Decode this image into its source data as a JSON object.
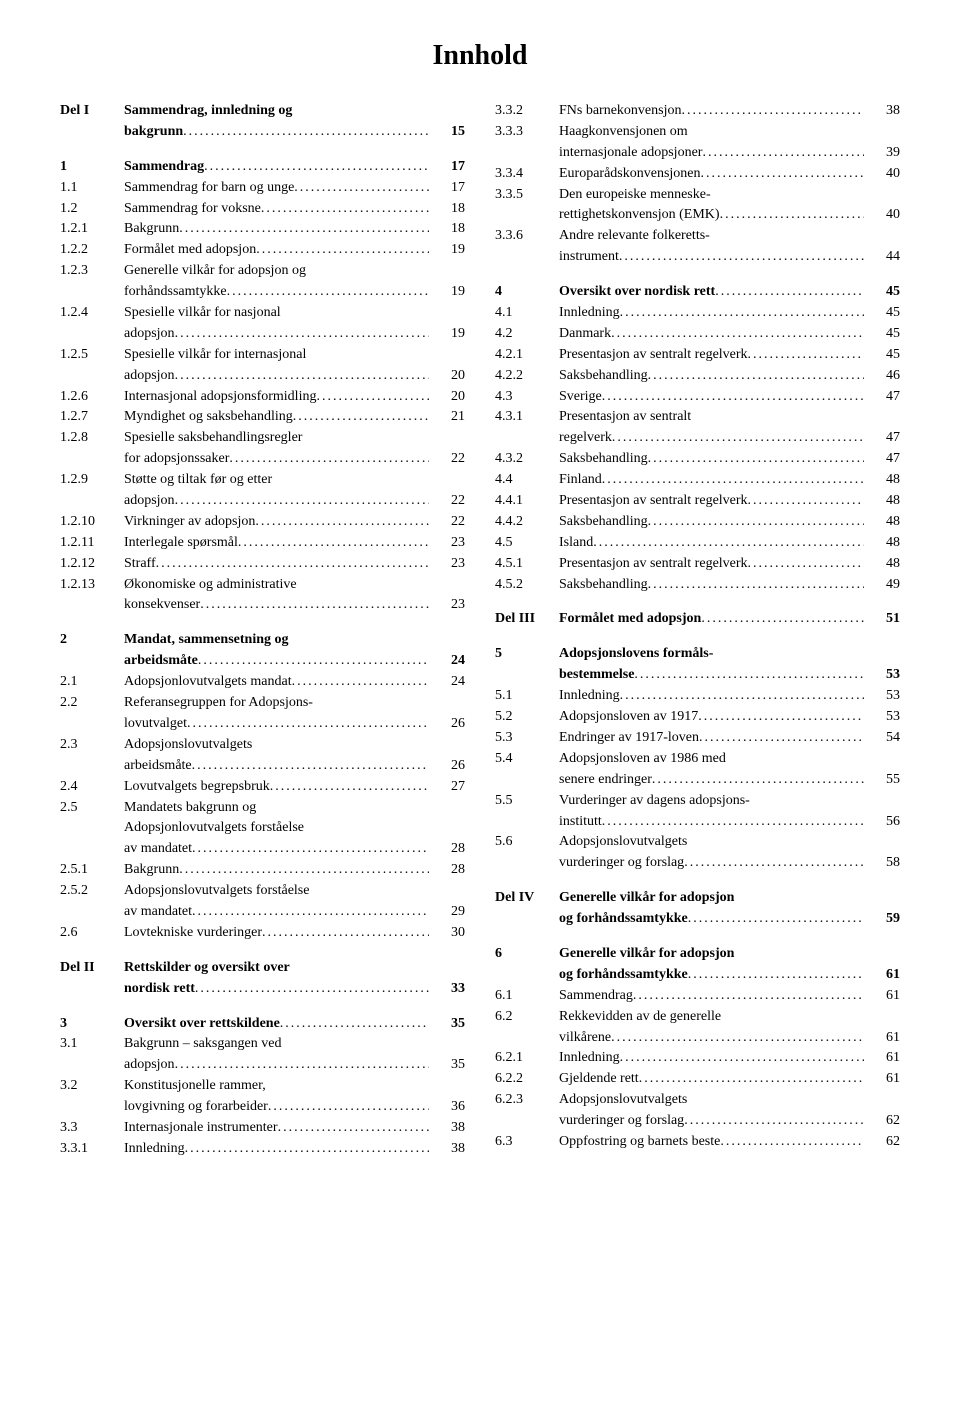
{
  "title": "Innhold",
  "left": [
    {
      "num": "Del I",
      "label": "Sammendrag, innledning og",
      "page": "",
      "bold": true,
      "cont": true
    },
    {
      "num": "",
      "label": "bakgrunn",
      "page": "15",
      "bold": true
    },
    {
      "spacer": true
    },
    {
      "num": "1",
      "label": "Sammendrag",
      "page": "17",
      "bold": true
    },
    {
      "num": "1.1",
      "label": "Sammendrag for barn og unge",
      "page": "17"
    },
    {
      "num": "1.2",
      "label": "Sammendrag for voksne",
      "page": "18"
    },
    {
      "num": "1.2.1",
      "label": "Bakgrunn",
      "page": "18"
    },
    {
      "num": "1.2.2",
      "label": "Formålet med adopsjon",
      "page": "19"
    },
    {
      "num": "1.2.3",
      "label": "Generelle vilkår for adopsjon og",
      "page": "",
      "cont": true
    },
    {
      "num": "",
      "label": "forhåndssamtykke",
      "page": "19"
    },
    {
      "num": "1.2.4",
      "label": "Spesielle vilkår for nasjonal",
      "page": "",
      "cont": true
    },
    {
      "num": "",
      "label": "adopsjon",
      "page": "19"
    },
    {
      "num": "1.2.5",
      "label": "Spesielle vilkår for internasjonal",
      "page": "",
      "cont": true
    },
    {
      "num": "",
      "label": "adopsjon",
      "page": "20"
    },
    {
      "num": "1.2.6",
      "label": "Internasjonal adopsjonsformidling",
      "page": "20"
    },
    {
      "num": "1.2.7",
      "label": "Myndighet og saksbehandling",
      "page": "21"
    },
    {
      "num": "1.2.8",
      "label": "Spesielle saksbehandlingsregler",
      "page": "",
      "cont": true
    },
    {
      "num": "",
      "label": "for adopsjonssaker",
      "page": "22"
    },
    {
      "num": "1.2.9",
      "label": "Støtte og tiltak før og etter",
      "page": "",
      "cont": true
    },
    {
      "num": "",
      "label": "adopsjon",
      "page": "22"
    },
    {
      "num": "1.2.10",
      "label": "Virkninger av adopsjon",
      "page": "22"
    },
    {
      "num": "1.2.11",
      "label": "Interlegale spørsmål",
      "page": "23"
    },
    {
      "num": "1.2.12",
      "label": "Straff",
      "page": "23"
    },
    {
      "num": "1.2.13",
      "label": "Økonomiske og administrative",
      "page": "",
      "cont": true
    },
    {
      "num": "",
      "label": "konsekvenser",
      "page": "23"
    },
    {
      "spacer": true
    },
    {
      "num": "2",
      "label": "Mandat, sammensetning og",
      "page": "",
      "bold": true,
      "cont": true
    },
    {
      "num": "",
      "label": "arbeidsmåte",
      "page": "24",
      "bold": true
    },
    {
      "num": "2.1",
      "label": "Adopsjonlovutvalgets mandat",
      "page": "24"
    },
    {
      "num": "2.2",
      "label": "Referansegruppen for Adopsjons-",
      "page": "",
      "cont": true
    },
    {
      "num": "",
      "label": "lovutvalget",
      "page": "26"
    },
    {
      "num": "2.3",
      "label": "Adopsjonslovutvalgets",
      "page": "",
      "cont": true
    },
    {
      "num": "",
      "label": "arbeidsmåte",
      "page": "26"
    },
    {
      "num": "2.4",
      "label": "Lovutvalgets begrepsbruk",
      "page": "27"
    },
    {
      "num": "2.5",
      "label": "Mandatets bakgrunn og",
      "page": "",
      "cont": true
    },
    {
      "num": "",
      "label": "Adopsjonlovutvalgets forståelse",
      "page": "",
      "cont": true
    },
    {
      "num": "",
      "label": "av mandatet",
      "page": "28"
    },
    {
      "num": "2.5.1",
      "label": "Bakgrunn",
      "page": "28"
    },
    {
      "num": "2.5.2",
      "label": "Adopsjonslovutvalgets forståelse",
      "page": "",
      "cont": true
    },
    {
      "num": "",
      "label": "av mandatet",
      "page": "29"
    },
    {
      "num": "2.6",
      "label": "Lovtekniske vurderinger",
      "page": "30"
    },
    {
      "spacer": true
    },
    {
      "num": "Del II",
      "label": "Rettskilder og oversikt over",
      "page": "",
      "bold": true,
      "cont": true
    },
    {
      "num": "",
      "label": "nordisk rett",
      "page": "33",
      "bold": true
    },
    {
      "spacer": true
    },
    {
      "num": "3",
      "label": "Oversikt over rettskildene",
      "page": "35",
      "bold": true
    },
    {
      "num": "3.1",
      "label": "Bakgrunn – saksgangen ved",
      "page": "",
      "cont": true
    },
    {
      "num": "",
      "label": "adopsjon",
      "page": "35"
    },
    {
      "num": "3.2",
      "label": "Konstitusjonelle rammer,",
      "page": "",
      "cont": true
    },
    {
      "num": "",
      "label": "lovgivning og forarbeider",
      "page": "36"
    },
    {
      "num": "3.3",
      "label": "Internasjonale instrumenter",
      "page": "38"
    },
    {
      "num": "3.3.1",
      "label": "Innledning",
      "page": "38"
    }
  ],
  "right": [
    {
      "num": "3.3.2",
      "label": "FNs barnekonvensjon",
      "page": "38"
    },
    {
      "num": "3.3.3",
      "label": "Haagkonvensjonen om",
      "page": "",
      "cont": true
    },
    {
      "num": "",
      "label": "internasjonale adopsjoner",
      "page": "39"
    },
    {
      "num": "3.3.4",
      "label": "Europarådskonvensjonen",
      "page": "40"
    },
    {
      "num": "3.3.5",
      "label": "Den europeiske menneske-",
      "page": "",
      "cont": true
    },
    {
      "num": "",
      "label": "rettighetskonvensjon (EMK)",
      "page": "40"
    },
    {
      "num": "3.3.6",
      "label": "Andre relevante folkeretts-",
      "page": "",
      "cont": true
    },
    {
      "num": "",
      "label": "instrument",
      "page": "44"
    },
    {
      "spacer": true
    },
    {
      "num": "4",
      "label": "Oversikt over nordisk rett",
      "page": "45",
      "bold": true
    },
    {
      "num": "4.1",
      "label": "Innledning",
      "page": "45"
    },
    {
      "num": "4.2",
      "label": "Danmark",
      "page": "45"
    },
    {
      "num": "4.2.1",
      "label": "Presentasjon av sentralt regelverk",
      "page": "45"
    },
    {
      "num": "4.2.2",
      "label": "Saksbehandling",
      "page": "46"
    },
    {
      "num": "4.3",
      "label": "Sverige",
      "page": "47"
    },
    {
      "num": "4.3.1",
      "label": "Presentasjon av sentralt",
      "page": "",
      "cont": true
    },
    {
      "num": "",
      "label": "regelverk",
      "page": "47"
    },
    {
      "num": "4.3.2",
      "label": "Saksbehandling",
      "page": "47"
    },
    {
      "num": "4.4",
      "label": "Finland",
      "page": "48"
    },
    {
      "num": "4.4.1",
      "label": "Presentasjon av sentralt regelverk",
      "page": "48"
    },
    {
      "num": "4.4.2",
      "label": "Saksbehandling",
      "page": "48"
    },
    {
      "num": "4.5",
      "label": "Island",
      "page": "48"
    },
    {
      "num": "4.5.1",
      "label": "Presentasjon av sentralt regelverk",
      "page": "48"
    },
    {
      "num": "4.5.2",
      "label": "Saksbehandling",
      "page": "49"
    },
    {
      "spacer": true
    },
    {
      "num": "Del III",
      "label": "Formålet med adopsjon",
      "page": "51",
      "bold": true
    },
    {
      "spacer": true
    },
    {
      "num": "5",
      "label": "Adopsjonslovens formåls-",
      "page": "",
      "bold": true,
      "cont": true
    },
    {
      "num": "",
      "label": "bestemmelse",
      "page": "53",
      "bold": true
    },
    {
      "num": "5.1",
      "label": "Innledning",
      "page": "53"
    },
    {
      "num": "5.2",
      "label": "Adopsjonsloven av 1917",
      "page": "53"
    },
    {
      "num": "5.3",
      "label": "Endringer av 1917-loven",
      "page": "54"
    },
    {
      "num": "5.4",
      "label": "Adopsjonsloven av 1986 med",
      "page": "",
      "cont": true
    },
    {
      "num": "",
      "label": "senere endringer",
      "page": "55"
    },
    {
      "num": "5.5",
      "label": "Vurderinger av dagens adopsjons-",
      "page": "",
      "cont": true
    },
    {
      "num": "",
      "label": "institutt",
      "page": "56"
    },
    {
      "num": "5.6",
      "label": "Adopsjonslovutvalgets",
      "page": "",
      "cont": true
    },
    {
      "num": "",
      "label": "vurderinger og forslag",
      "page": "58"
    },
    {
      "spacer": true
    },
    {
      "num": "Del IV",
      "label": "Generelle vilkår for adopsjon",
      "page": "",
      "bold": true,
      "cont": true
    },
    {
      "num": "",
      "label": "og forhåndssamtykke",
      "page": "59",
      "bold": true
    },
    {
      "spacer": true
    },
    {
      "num": "6",
      "label": "Generelle vilkår for adopsjon",
      "page": "",
      "bold": true,
      "cont": true
    },
    {
      "num": "",
      "label": "og forhåndssamtykke",
      "page": "61",
      "bold": true
    },
    {
      "num": "6.1",
      "label": "Sammendrag",
      "page": "61"
    },
    {
      "num": "6.2",
      "label": "Rekkevidden av de generelle",
      "page": "",
      "cont": true
    },
    {
      "num": "",
      "label": "vilkårene",
      "page": "61"
    },
    {
      "num": "6.2.1",
      "label": "Innledning",
      "page": "61"
    },
    {
      "num": "6.2.2",
      "label": "Gjeldende rett",
      "page": "61"
    },
    {
      "num": "6.2.3",
      "label": "Adopsjonslovutvalgets",
      "page": "",
      "cont": true
    },
    {
      "num": "",
      "label": "vurderinger og forslag",
      "page": "62"
    },
    {
      "num": "6.3",
      "label": "Oppfostring og barnets beste",
      "page": "62"
    }
  ]
}
